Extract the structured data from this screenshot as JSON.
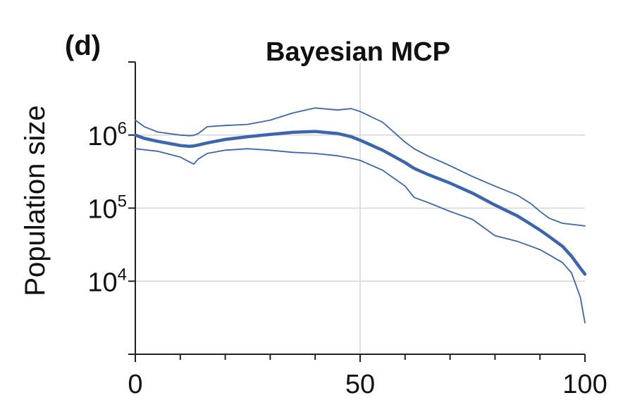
{
  "chart_data": {
    "type": "line",
    "panel_label": "(d)",
    "title": "Bayesian MCP",
    "xlabel": "",
    "ylabel": "Population size",
    "xlim": [
      0,
      100
    ],
    "ylim": [
      1000,
      10000000
    ],
    "yscale": "log",
    "grid": true,
    "colors": {
      "series": "#3b66ad",
      "grid": "#d6d6d6",
      "axis": "#222222"
    },
    "x_ticks": [
      {
        "value": 0,
        "label": "0"
      },
      {
        "value": 50,
        "label": "50"
      },
      {
        "value": 100,
        "label": "100"
      }
    ],
    "x_minor_ticks": [
      10,
      20,
      30,
      40,
      60,
      70,
      80,
      90
    ],
    "y_ticks": [
      {
        "value": 10000,
        "base": "10",
        "exp": "4"
      },
      {
        "value": 100000,
        "base": "10",
        "exp": "5"
      },
      {
        "value": 1000000,
        "base": "10",
        "exp": "6"
      }
    ],
    "y_minor_ticks": [
      1000,
      10000000
    ],
    "x_grid": [
      50
    ],
    "y_grid": [
      10000,
      100000,
      1000000
    ],
    "x": [
      0,
      2,
      5,
      10,
      12,
      13,
      14,
      16,
      20,
      25,
      30,
      35,
      40,
      45,
      48,
      50,
      55,
      60,
      62,
      65,
      70,
      75,
      80,
      85,
      88,
      90,
      92,
      95,
      97,
      99,
      100
    ],
    "series": [
      {
        "role": "median",
        "values": [
          1000000,
          900000,
          820000,
          720000,
          700000,
          710000,
          730000,
          780000,
          870000,
          950000,
          1020000,
          1090000,
          1120000,
          1050000,
          950000,
          850000,
          620000,
          420000,
          350000,
          290000,
          220000,
          160000,
          110000,
          78000,
          60000,
          50000,
          41000,
          30000,
          22000,
          15000,
          12500
        ]
      },
      {
        "role": "upper",
        "values": [
          1600000,
          1300000,
          1100000,
          1000000,
          980000,
          990000,
          1050000,
          1300000,
          1350000,
          1400000,
          1600000,
          2000000,
          2350000,
          2200000,
          2300000,
          2100000,
          1500000,
          800000,
          650000,
          520000,
          380000,
          270000,
          200000,
          150000,
          115000,
          90000,
          73000,
          62000,
          60000,
          58000,
          57000
        ]
      },
      {
        "role": "lower",
        "values": [
          650000,
          630000,
          600000,
          500000,
          430000,
          400000,
          470000,
          560000,
          620000,
          650000,
          620000,
          580000,
          560000,
          520000,
          480000,
          450000,
          330000,
          200000,
          140000,
          120000,
          90000,
          70000,
          42000,
          35000,
          30000,
          27000,
          23000,
          18000,
          13000,
          6000,
          2700
        ]
      }
    ]
  }
}
